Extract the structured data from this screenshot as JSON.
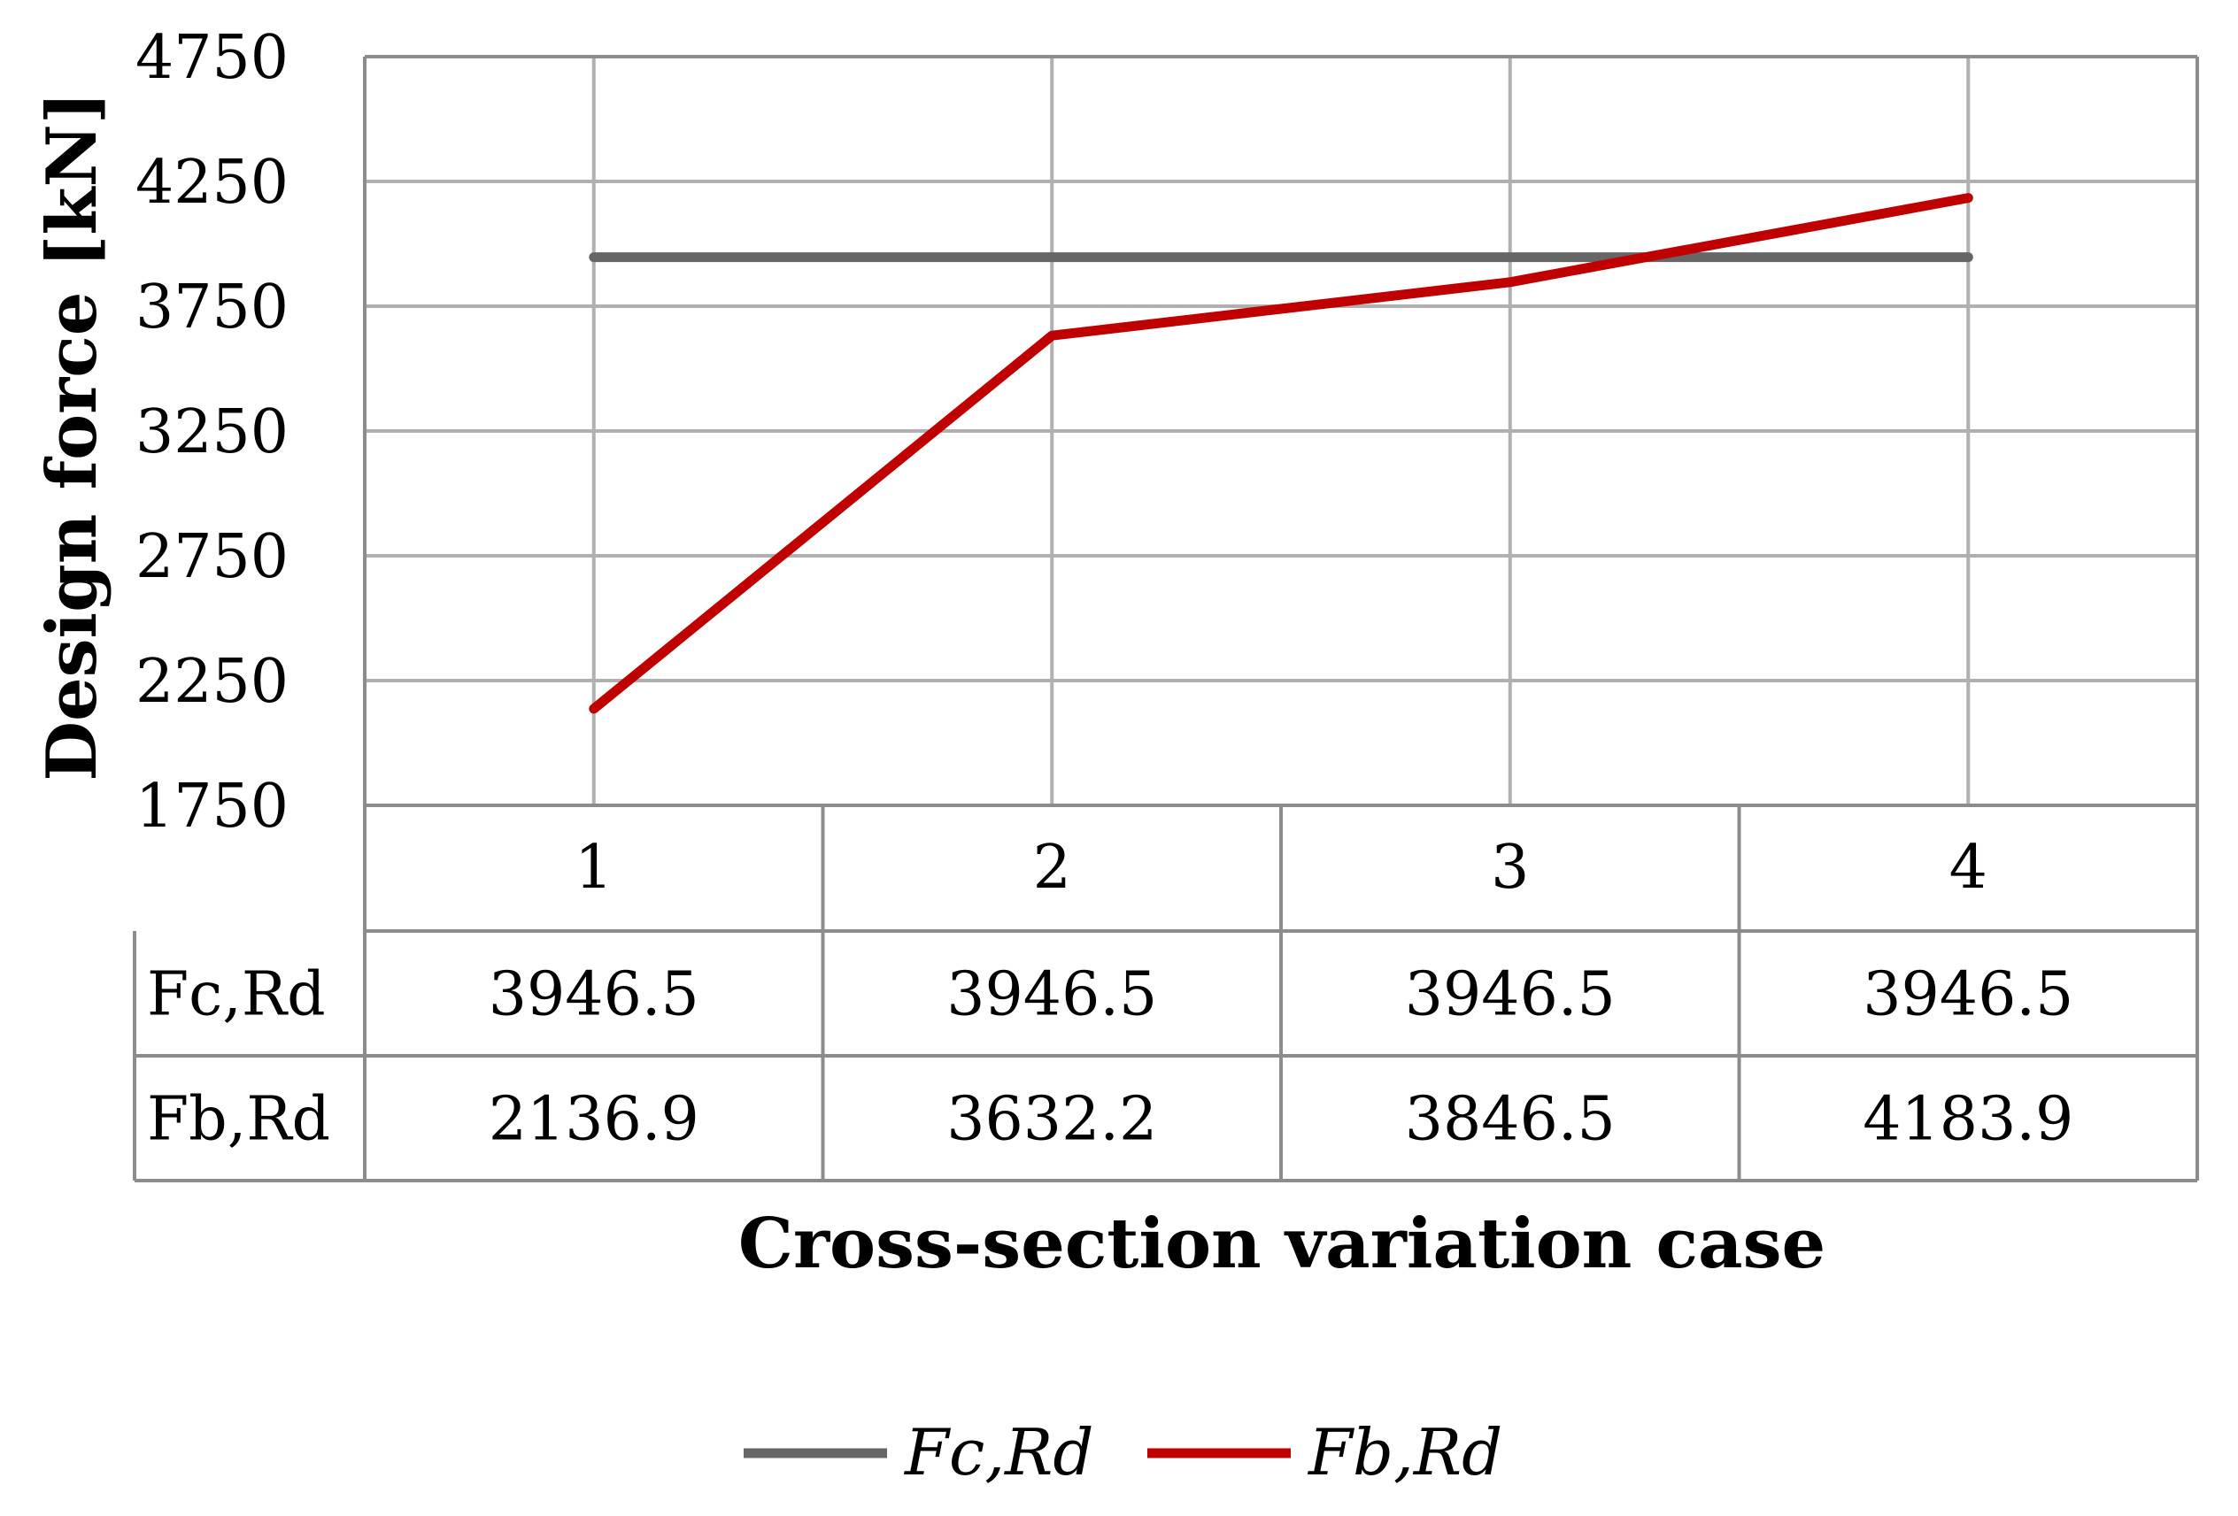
{
  "chart_data": {
    "type": "line",
    "title": "",
    "xlabel": "Cross-section variation case",
    "ylabel": "Design force [kN]",
    "categories": [
      "1",
      "2",
      "3",
      "4"
    ],
    "ylim": [
      1750,
      4750
    ],
    "yticks": [
      "4750",
      "4250",
      "3750",
      "3250",
      "2750",
      "2250",
      "1750"
    ],
    "ytick_values": [
      4750,
      4250,
      3750,
      3250,
      2750,
      2250,
      1750
    ],
    "grid": true,
    "legend_position": "bottom",
    "series": [
      {
        "name": "Fc,Rd",
        "legend_label": "Fc,Rd",
        "color": "#666666",
        "values": [
          3946.5,
          3946.5,
          3946.5,
          3946.5
        ],
        "labels": [
          "3946.5",
          "3946.5",
          "3946.5",
          "3946.5"
        ]
      },
      {
        "name": "Fb,Rd",
        "legend_label": "Fb,Rd",
        "color": "#c00000",
        "values": [
          2136.9,
          3632.2,
          3846.5,
          4183.9
        ],
        "labels": [
          "2136.9",
          "3632.2",
          "3846.5",
          "4183.9"
        ]
      }
    ],
    "data_table": {
      "row_labels": [
        "Fc,Rd",
        "Fb,Rd"
      ]
    }
  }
}
